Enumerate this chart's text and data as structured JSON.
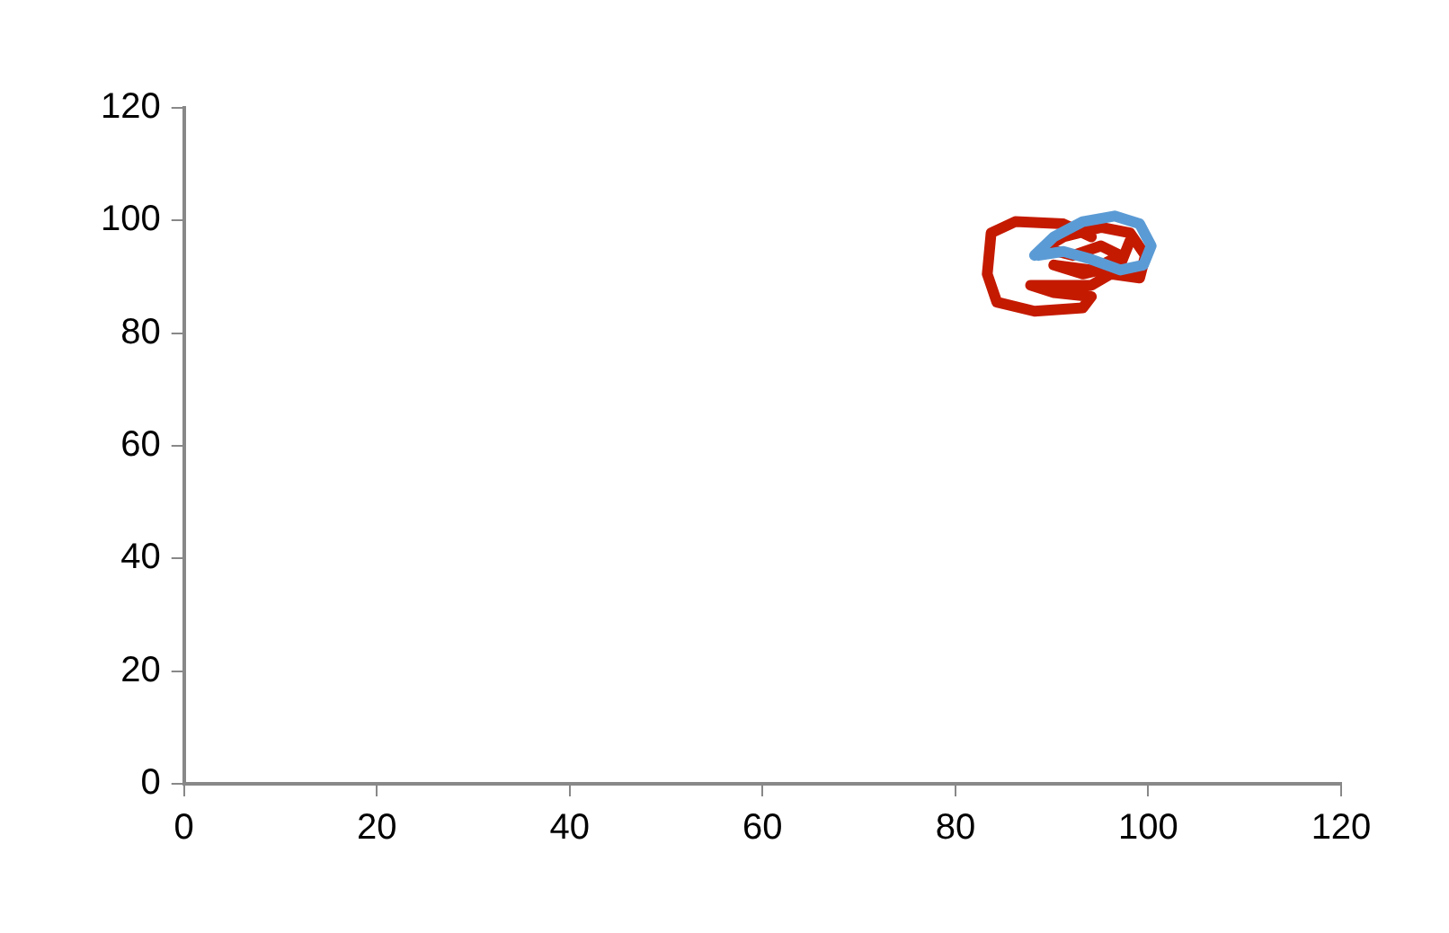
{
  "chart_data": {
    "type": "line",
    "xlim": [
      0,
      120
    ],
    "ylim": [
      0,
      120
    ],
    "xticks": [
      0,
      20,
      40,
      60,
      80,
      100,
      120
    ],
    "yticks": [
      0,
      20,
      40,
      60,
      80,
      100,
      120
    ],
    "grid": false,
    "legend": false,
    "marker": "none",
    "series": [
      {
        "color": "#5b9bd5",
        "x": [
          88.2,
          90.2,
          93.2,
          96.5,
          99.1,
          100.3,
          99.5,
          97.1,
          94.1,
          91.2,
          88.6
        ],
        "values": [
          93.8,
          97.1,
          99.8,
          100.8,
          99.4,
          95.5,
          92.1,
          91.2,
          93.1,
          94.5,
          93.8
        ]
      },
      {
        "color": "#c41a00",
        "x": [
          94.1,
          91.2,
          86.2,
          83.7,
          83.3,
          84.3,
          88.2,
          93.2,
          94.1,
          90.2,
          87.8,
          94.1,
          96.1,
          99.1,
          99.7,
          98.1,
          95.1,
          91.2,
          89.2,
          92.2,
          95.1,
          97.1,
          94.1,
          90.2,
          93.2,
          97.1,
          98.1
        ],
        "values": [
          97.1,
          99.4,
          99.8,
          97.8,
          90.5,
          85.5,
          83.9,
          84.5,
          86.5,
          87.2,
          88.5,
          88.5,
          90.5,
          89.8,
          93.8,
          97.8,
          98.8,
          97.1,
          95.1,
          93.8,
          95.5,
          93.8,
          91.2,
          92.1,
          90.5,
          92.1,
          96.4
        ]
      }
    ]
  }
}
